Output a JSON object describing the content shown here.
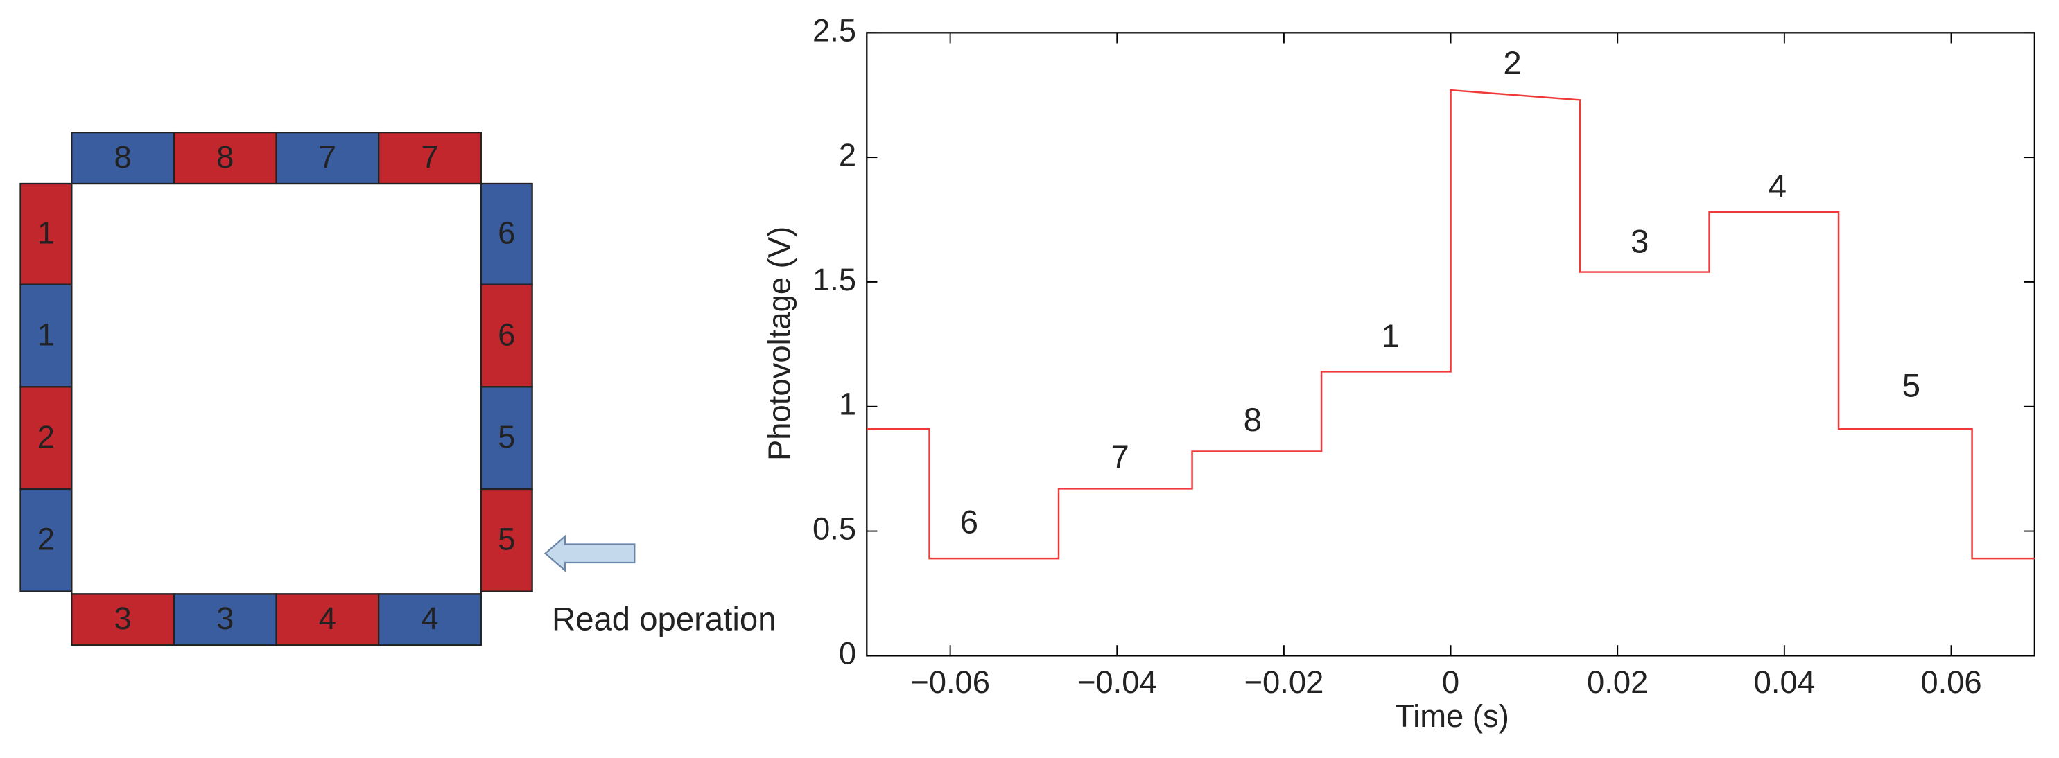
{
  "diagram": {
    "blocks": [
      {
        "label": "8",
        "color": "#3a5da0"
      },
      {
        "label": "8",
        "color": "#c1272d"
      },
      {
        "label": "7",
        "color": "#3a5da0"
      },
      {
        "label": "7",
        "color": "#c1272d"
      },
      {
        "label": "1",
        "color": "#c1272d"
      },
      {
        "label": "1",
        "color": "#3a5da0"
      },
      {
        "label": "2",
        "color": "#c1272d"
      },
      {
        "label": "2",
        "color": "#3a5da0"
      },
      {
        "label": "6",
        "color": "#3a5da0"
      },
      {
        "label": "6",
        "color": "#c1272d"
      },
      {
        "label": "5",
        "color": "#3a5da0"
      },
      {
        "label": "5",
        "color": "#c1272d"
      },
      {
        "label": "3",
        "color": "#c1272d"
      },
      {
        "label": "3",
        "color": "#3a5da0"
      },
      {
        "label": "4",
        "color": "#c1272d"
      },
      {
        "label": "4",
        "color": "#3a5da0"
      }
    ],
    "caption": "Read operation"
  },
  "chart_data": {
    "type": "line",
    "x_label": "Time (s)",
    "y_label": "Photovoltage (V)",
    "xlim": [
      -0.07,
      0.07
    ],
    "xticks": [
      {
        "value": -0.06,
        "label": "−0.06"
      },
      {
        "value": -0.04,
        "label": "−0.04"
      },
      {
        "value": -0.02,
        "label": "−0.02"
      },
      0,
      0.02,
      0.04,
      0.06
    ],
    "ylim": [
      0,
      2.5
    ],
    "yticks": [
      0,
      0.5,
      1,
      1.5,
      2,
      2.5
    ],
    "series": [
      {
        "color": "#f03a3a",
        "x": [
          -0.07,
          -0.0625,
          -0.0625,
          -0.047,
          -0.047,
          -0.031,
          -0.031,
          -0.0155,
          -0.0155,
          0,
          0,
          0.0155,
          0.0155,
          0.031,
          0.031,
          0.0465,
          0.0465,
          0.0625,
          0.0625,
          0.07
        ],
        "values": [
          0.91,
          0.91,
          0.39,
          0.39,
          0.67,
          0.67,
          0.82,
          0.82,
          1.14,
          1.14,
          2.27,
          2.23,
          1.54,
          1.54,
          1.78,
          1.78,
          0.91,
          0.91,
          0.39,
          0.39
        ]
      }
    ],
    "annotations": [
      "6",
      "7",
      "8",
      "1",
      "2",
      "3",
      "4",
      "5"
    ]
  }
}
